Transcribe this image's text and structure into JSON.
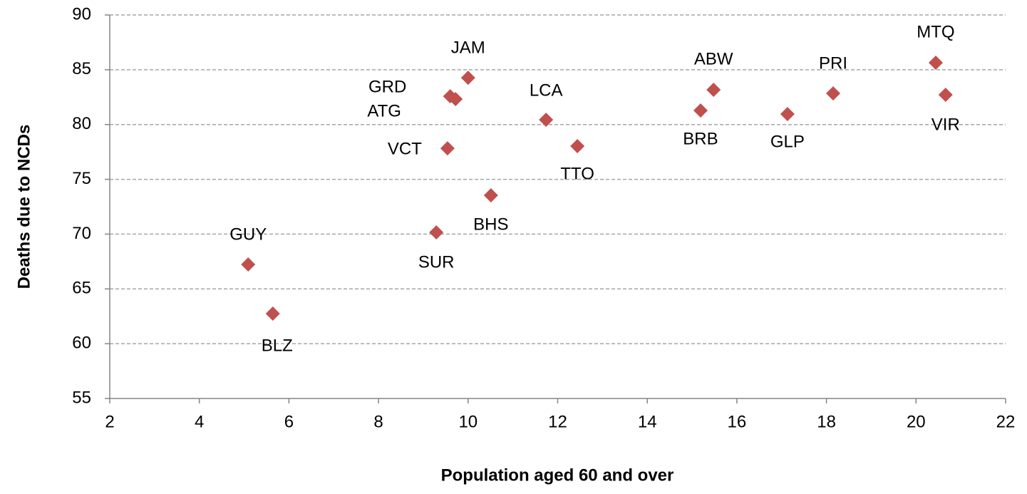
{
  "chart_data": {
    "type": "scatter",
    "x_label": "Population aged 60 and over",
    "y_label": "Deaths due to NCDs",
    "labels": [
      "GUY",
      "BLZ",
      "SUR",
      "VCT",
      "ATG",
      "GRD",
      "JAM",
      "BHS",
      "LCA",
      "TTO",
      "BRB",
      "ABW",
      "GLP",
      "PRI",
      "MTQ",
      "VIR"
    ],
    "x": [
      5.09,
      5.64,
      9.29,
      9.54,
      9.72,
      9.6,
      10.0,
      10.51,
      11.74,
      12.44,
      15.19,
      15.48,
      17.13,
      18.15,
      20.44,
      20.66
    ],
    "values": [
      67.23,
      62.74,
      70.16,
      77.83,
      82.32,
      82.58,
      84.27,
      73.54,
      80.44,
      78.03,
      81.28,
      83.17,
      80.96,
      82.84,
      85.64,
      82.71
    ],
    "color": "#c0504d",
    "xlim": [
      2,
      22
    ],
    "xticks": [
      2,
      4,
      6,
      8,
      10,
      12,
      14,
      16,
      18,
      20,
      22
    ],
    "ylim": [
      55,
      90
    ],
    "yticks": [
      55,
      60,
      65,
      70,
      75,
      80,
      85,
      90
    ],
    "grid": true
  }
}
